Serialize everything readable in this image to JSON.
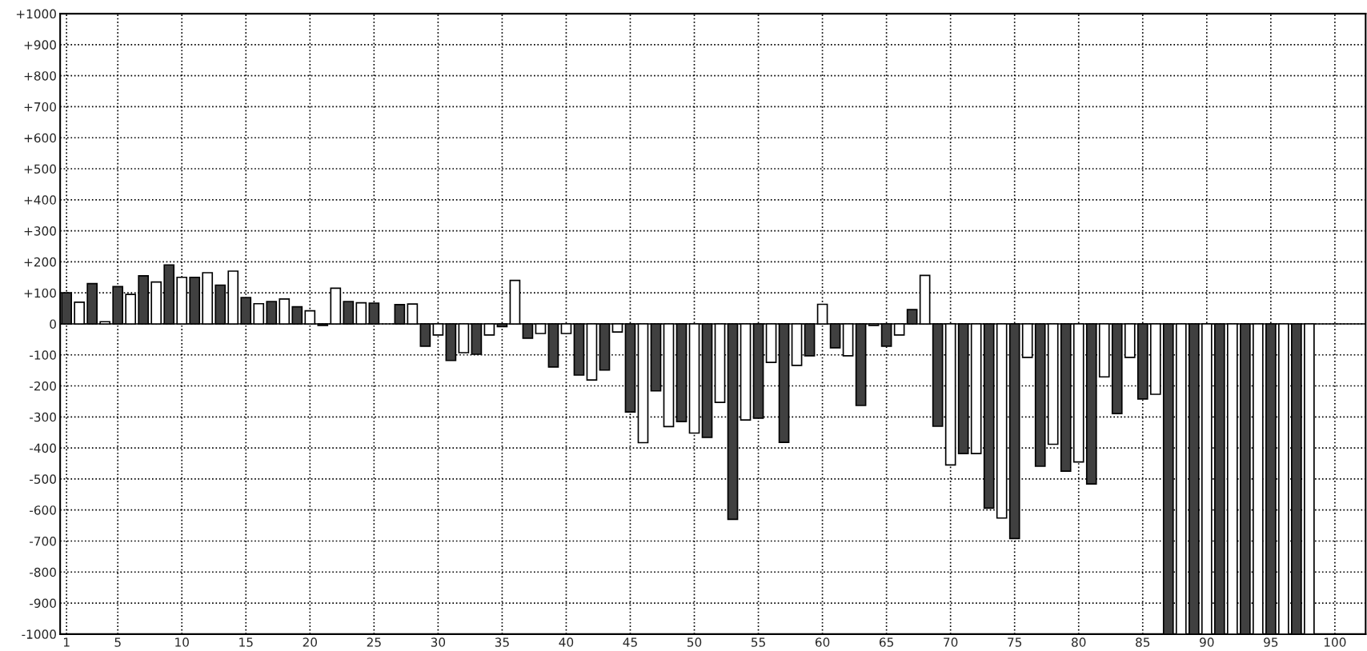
{
  "chart_data": {
    "type": "bar",
    "series": [
      {
        "color": "#404040",
        "x": [
          1,
          3,
          5,
          7,
          9,
          11,
          13,
          15,
          17,
          19,
          21,
          23,
          25,
          27,
          29,
          31,
          33,
          35,
          37,
          39,
          41,
          43,
          45,
          47,
          49,
          51,
          53,
          55,
          57,
          59,
          61,
          63,
          65,
          67,
          69,
          71,
          73,
          75,
          77,
          79,
          81,
          83,
          85,
          87,
          89,
          91,
          93,
          95,
          97
        ],
        "values": [
          100,
          130,
          120,
          155,
          190,
          150,
          125,
          85,
          72,
          55,
          -5,
          72,
          67,
          62,
          -72,
          -118,
          -98,
          -9,
          -46,
          -139,
          -165,
          -149,
          -284,
          -216,
          -315,
          -366,
          -630,
          -304,
          -382,
          -103,
          -77,
          -263,
          -72,
          46,
          -330,
          -418,
          -594,
          -692,
          -459,
          -475,
          -516,
          -289,
          -242,
          -1000,
          -1000,
          -1000,
          -1000,
          -1000,
          -1000
        ]
      },
      {
        "color": "#ffffff",
        "x": [
          2,
          4,
          6,
          8,
          10,
          12,
          14,
          16,
          18,
          20,
          22,
          24,
          26,
          28,
          30,
          32,
          34,
          36,
          38,
          40,
          42,
          44,
          46,
          48,
          50,
          52,
          54,
          56,
          58,
          60,
          62,
          64,
          66,
          68,
          70,
          72,
          74,
          76,
          78,
          80,
          82,
          84,
          86,
          88,
          90,
          92,
          94,
          96,
          98
        ],
        "values": [
          70,
          7,
          95,
          135,
          150,
          165,
          170,
          65,
          80,
          42,
          115,
          68,
          null,
          64,
          -36,
          -93,
          -36,
          140,
          -31,
          -31,
          -181,
          -26,
          -383,
          -331,
          -352,
          -253,
          -310,
          -124,
          -134,
          63,
          -103,
          -5,
          -36,
          156,
          -455,
          -418,
          -626,
          -108,
          -388,
          -445,
          -171,
          -108,
          -227,
          -1000,
          -1000,
          -1000,
          -1000,
          -1000,
          -1000
        ]
      }
    ],
    "xlim": [
      0.5,
      102.4
    ],
    "xticks": [
      1,
      5,
      10,
      15,
      20,
      25,
      30,
      35,
      40,
      45,
      50,
      55,
      60,
      65,
      70,
      75,
      80,
      85,
      90,
      95,
      100
    ],
    "ylim": [
      -1000,
      1000
    ],
    "yticks": [
      {
        "value": -1000,
        "label": "-1000"
      },
      {
        "value": -900,
        "label": "-900"
      },
      {
        "value": -800,
        "label": "-800"
      },
      {
        "value": -700,
        "label": "-700"
      },
      {
        "value": -600,
        "label": "-600"
      },
      {
        "value": -500,
        "label": "-500"
      },
      {
        "value": -400,
        "label": "-400"
      },
      {
        "value": -300,
        "label": "-300"
      },
      {
        "value": -200,
        "label": "-200"
      },
      {
        "value": -100,
        "label": "-100"
      },
      0,
      {
        "value": 100,
        "label": "+100"
      },
      {
        "value": 200,
        "label": "+200"
      },
      {
        "value": 300,
        "label": "+300"
      },
      {
        "value": 400,
        "label": "+400"
      },
      {
        "value": 500,
        "label": "+500"
      },
      {
        "value": 600,
        "label": "+600"
      },
      {
        "value": 700,
        "label": "+700"
      },
      {
        "value": 800,
        "label": "+800"
      },
      {
        "value": 900,
        "label": "+900"
      },
      {
        "value": 1000,
        "label": "+1000"
      }
    ],
    "ref_lines": [
      {
        "axis": "y",
        "value": 0,
        "color": "#000000"
      }
    ],
    "grid": true,
    "line_style": "dotted"
  }
}
